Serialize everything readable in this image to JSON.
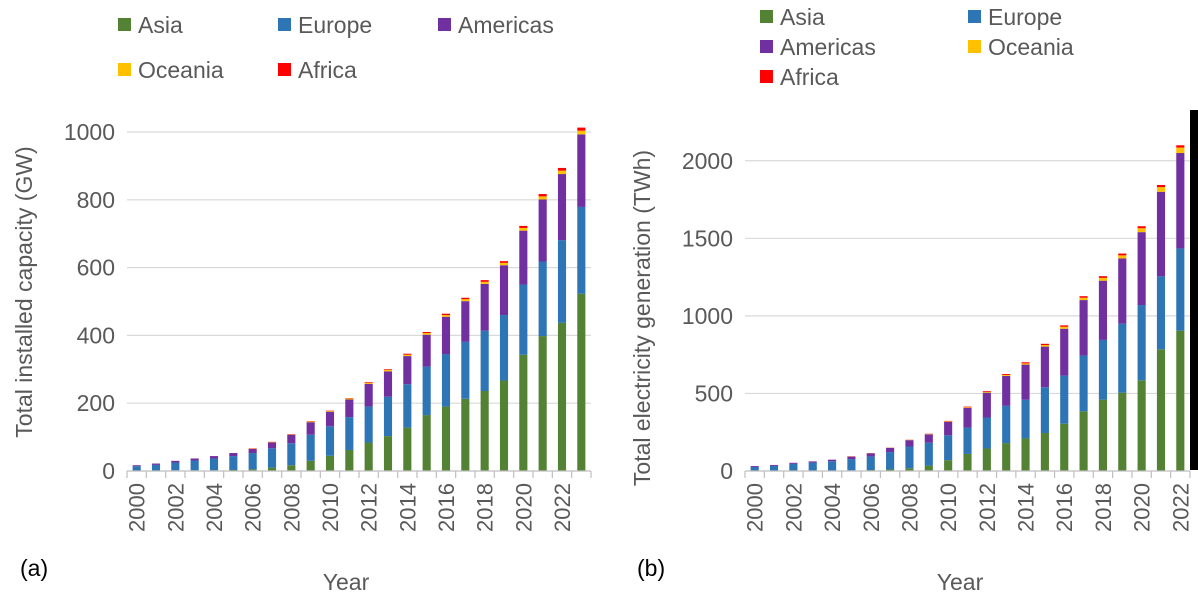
{
  "colors": {
    "Asia": "#548235",
    "Europe": "#2E75B6",
    "Americas": "#7030A0",
    "Oceania": "#FFC000",
    "Africa": "#FF0000",
    "grid": "#D9D9D9",
    "axis": "#BFBFBF",
    "text": "#595959"
  },
  "chart_data": [
    {
      "type": "bar",
      "stacked": true,
      "panel_label": "(a)",
      "title": "",
      "xlabel": "Year",
      "ylabel": "Total installed capacity (GW)",
      "ylim": [
        0,
        1000
      ],
      "yticks": [
        0,
        200,
        400,
        600,
        800,
        1000
      ],
      "grid": true,
      "legend_position": "top",
      "categories": [
        "2000",
        "2001",
        "2002",
        "2003",
        "2004",
        "2005",
        "2006",
        "2007",
        "2008",
        "2009",
        "2010",
        "2011",
        "2012",
        "2013",
        "2014",
        "2015",
        "2016",
        "2017",
        "2018",
        "2019",
        "2020",
        "2021",
        "2022",
        "2023"
      ],
      "x_tick_labels": [
        "2000",
        "",
        "2002",
        "",
        "2004",
        "",
        "2006",
        "",
        "2008",
        "",
        "2010",
        "",
        "2012",
        "",
        "2014",
        "",
        "2016",
        "",
        "2018",
        "",
        "2020",
        "",
        "2022",
        ""
      ],
      "series": [
        {
          "name": "Asia",
          "values": [
            1,
            1,
            2,
            2,
            2,
            3,
            5,
            10,
            17,
            30,
            45,
            62,
            84,
            103,
            128,
            165,
            190,
            213,
            236,
            267,
            343,
            398,
            437,
            523
          ]
        },
        {
          "name": "Europe",
          "values": [
            13,
            17,
            23,
            29,
            35,
            41,
            48,
            57,
            65,
            77,
            87,
            97,
            106,
            116,
            128,
            143,
            155,
            168,
            178,
            193,
            207,
            220,
            244,
            256
          ]
        },
        {
          "name": "Americas",
          "values": [
            3,
            4,
            5,
            6,
            7,
            9,
            12,
            17,
            25,
            37,
            43,
            52,
            67,
            75,
            83,
            94,
            110,
            120,
            138,
            147,
            159,
            183,
            195,
            214
          ]
        },
        {
          "name": "Oceania",
          "values": [
            0,
            0,
            0,
            0,
            0,
            0,
            1,
            1,
            1,
            2,
            2,
            3,
            3,
            4,
            4,
            5,
            5,
            6,
            6,
            7,
            8,
            9,
            10,
            11
          ]
        },
        {
          "name": "Africa",
          "values": [
            0,
            0,
            0,
            0,
            0,
            0,
            1,
            1,
            1,
            1,
            1,
            1,
            2,
            2,
            3,
            3,
            4,
            4,
            5,
            5,
            6,
            7,
            8,
            9
          ]
        }
      ]
    },
    {
      "type": "bar",
      "stacked": true,
      "panel_label": "(b)",
      "title": "",
      "xlabel": "Year",
      "ylabel": "Total electricity generation (TWh)",
      "ylim": [
        0,
        2250
      ],
      "yticks": [
        0,
        500,
        1000,
        1500,
        2000
      ],
      "grid": true,
      "legend_position": "top",
      "categories": [
        "2000",
        "2001",
        "2002",
        "2003",
        "2004",
        "2005",
        "2006",
        "2007",
        "2008",
        "2009",
        "2010",
        "2011",
        "2012",
        "2013",
        "2014",
        "2015",
        "2016",
        "2017",
        "2018",
        "2019",
        "2020",
        "2021",
        "2022"
      ],
      "x_tick_labels": [
        "2000",
        "",
        "2002",
        "",
        "2004",
        "",
        "2006",
        "",
        "2008",
        "",
        "2010",
        "",
        "2012",
        "",
        "2014",
        "",
        "2016",
        "",
        "2018",
        "",
        "2020",
        "",
        "2022"
      ],
      "series": [
        {
          "name": "Asia",
          "values": [
            1,
            1,
            2,
            2,
            3,
            4,
            6,
            10,
            18,
            35,
            70,
            110,
            145,
            180,
            210,
            245,
            305,
            385,
            460,
            505,
            585,
            785,
            905
          ]
        },
        {
          "name": "Europe",
          "values": [
            25,
            32,
            44,
            52,
            60,
            73,
            88,
            112,
            140,
            147,
            160,
            170,
            200,
            240,
            250,
            295,
            310,
            360,
            385,
            445,
            485,
            470,
            530
          ]
        },
        {
          "name": "Americas",
          "values": [
            6,
            6,
            7,
            8,
            10,
            16,
            20,
            27,
            41,
            54,
            87,
            127,
            160,
            193,
            226,
            262,
            302,
            357,
            382,
            420,
            470,
            545,
            615
          ]
        },
        {
          "name": "Oceania",
          "values": [
            0,
            0,
            0,
            0,
            0,
            1,
            1,
            1,
            2,
            2,
            3,
            4,
            5,
            6,
            8,
            10,
            13,
            15,
            18,
            20,
            25,
            30,
            35
          ]
        },
        {
          "name": "Africa",
          "values": [
            0,
            0,
            0,
            0,
            0,
            1,
            1,
            1,
            1,
            2,
            3,
            4,
            5,
            6,
            7,
            8,
            9,
            10,
            11,
            12,
            13,
            14,
            15
          ]
        }
      ]
    }
  ]
}
